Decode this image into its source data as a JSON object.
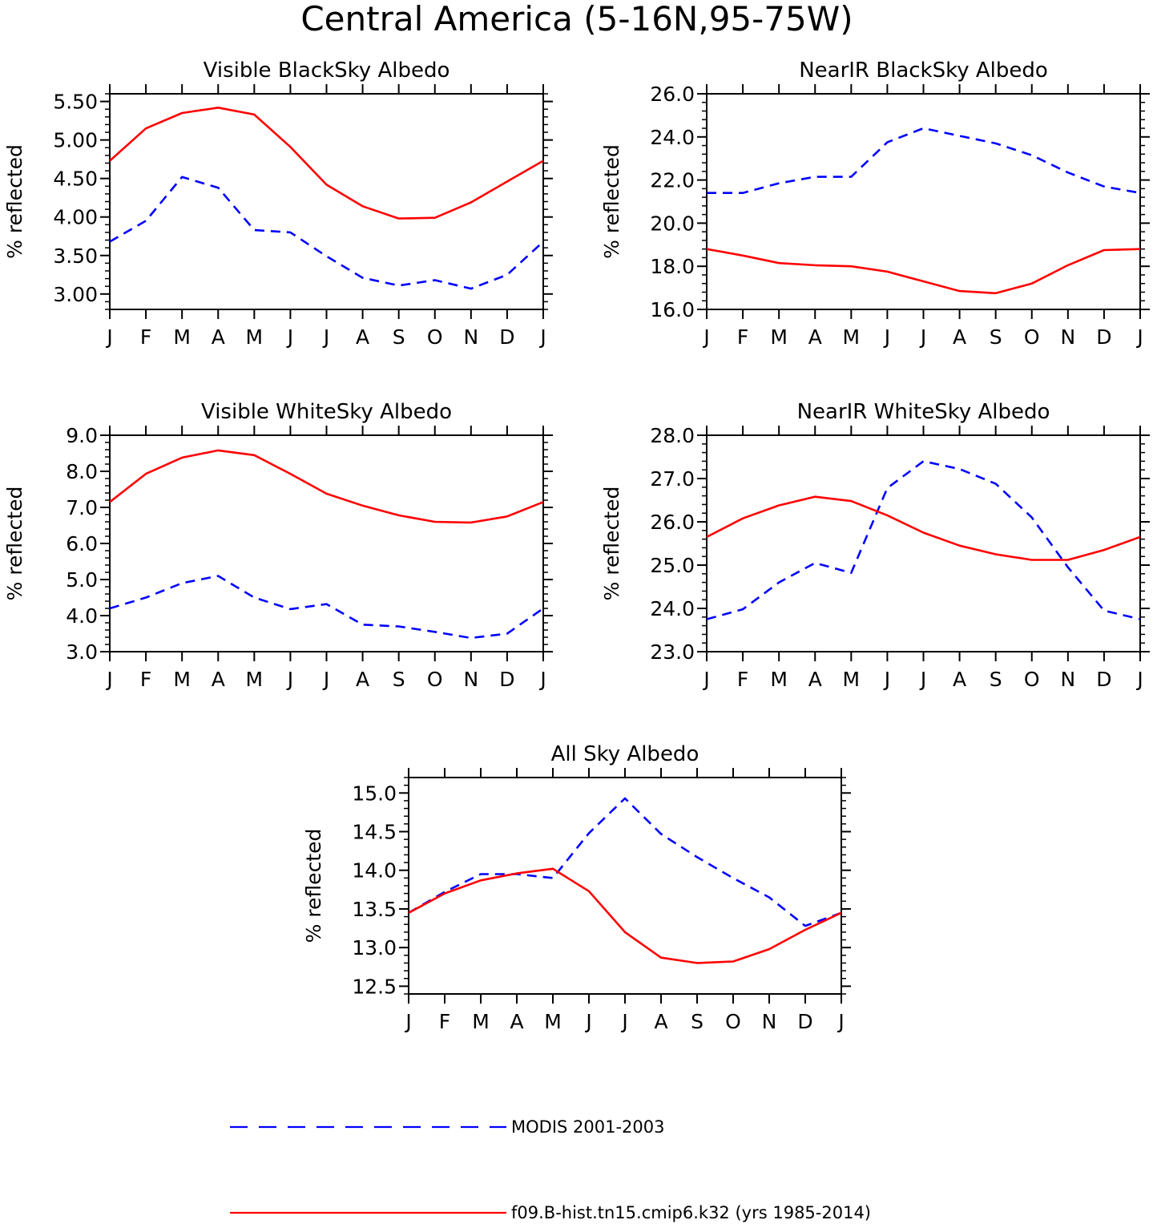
{
  "title": "Central America (5-16N,95-75W)",
  "month_labels": [
    "J",
    "F",
    "M",
    "A",
    "M",
    "J",
    "J",
    "A",
    "S",
    "O",
    "N",
    "D",
    "J"
  ],
  "ylabel": "% reflected",
  "colors": {
    "modis": "#0000ff",
    "model": "#ff0000"
  },
  "legend": {
    "modis_label": "MODIS 2001-2003",
    "model_label": "f09.B-hist.tn15.cmip6.k32 (yrs 1985-2014)"
  },
  "chart_data": [
    {
      "type": "line",
      "title": "Visible BlackSky Albedo",
      "ylabel": "% reflected",
      "x": [
        "J",
        "F",
        "M",
        "A",
        "M",
        "J",
        "J",
        "A",
        "S",
        "O",
        "N",
        "D",
        "J"
      ],
      "ylim": [
        2.8,
        5.6
      ],
      "yticks": [
        3.0,
        3.5,
        4.0,
        4.5,
        5.0,
        5.5
      ],
      "ytick_labels": [
        "3.00",
        "3.50",
        "4.00",
        "4.50",
        "5.00",
        "5.50"
      ],
      "series": [
        {
          "name": "MODIS 2001-2003",
          "style": "dashed",
          "values": [
            3.68,
            3.95,
            4.52,
            4.38,
            3.83,
            3.8,
            3.49,
            3.21,
            3.11,
            3.18,
            3.07,
            3.25,
            3.68
          ]
        },
        {
          "name": "f09.B-hist.tn15.cmip6.k32 (yrs 1985-2014)",
          "style": "solid",
          "values": [
            4.73,
            5.15,
            5.35,
            5.42,
            5.33,
            4.91,
            4.42,
            4.14,
            3.98,
            3.99,
            4.19,
            4.46,
            4.73
          ]
        }
      ]
    },
    {
      "type": "line",
      "title": "NearIR BlackSky Albedo",
      "ylabel": "% reflected",
      "x": [
        "J",
        "F",
        "M",
        "A",
        "M",
        "J",
        "J",
        "A",
        "S",
        "O",
        "N",
        "D",
        "J"
      ],
      "ylim": [
        16.0,
        26.0
      ],
      "yticks": [
        16,
        18,
        20,
        22,
        24,
        26
      ],
      "ytick_labels": [
        "16.0",
        "18.0",
        "20.0",
        "22.0",
        "24.0",
        "26.0"
      ],
      "series": [
        {
          "name": "MODIS 2001-2003",
          "style": "dashed",
          "values": [
            21.4,
            21.4,
            21.85,
            22.15,
            22.15,
            23.75,
            24.4,
            24.05,
            23.7,
            23.15,
            22.35,
            21.7,
            21.4
          ]
        },
        {
          "name": "f09.B-hist.tn15.cmip6.k32 (yrs 1985-2014)",
          "style": "solid",
          "values": [
            18.8,
            18.5,
            18.15,
            18.05,
            18.0,
            17.75,
            17.3,
            16.85,
            16.75,
            17.2,
            18.05,
            18.75,
            18.8
          ]
        }
      ]
    },
    {
      "type": "line",
      "title": "Visible WhiteSky Albedo",
      "ylabel": "% reflected",
      "x": [
        "J",
        "F",
        "M",
        "A",
        "M",
        "J",
        "J",
        "A",
        "S",
        "O",
        "N",
        "D",
        "J"
      ],
      "ylim": [
        3.0,
        9.0
      ],
      "yticks": [
        3,
        4,
        5,
        6,
        7,
        8,
        9
      ],
      "ytick_labels": [
        "3.0",
        "4.0",
        "5.0",
        "6.0",
        "7.0",
        "8.0",
        "9.0"
      ],
      "series": [
        {
          "name": "MODIS 2001-2003",
          "style": "dashed",
          "values": [
            4.2,
            4.5,
            4.9,
            5.1,
            4.5,
            4.18,
            4.32,
            3.75,
            3.7,
            3.55,
            3.38,
            3.5,
            4.2
          ]
        },
        {
          "name": "f09.B-hist.tn15.cmip6.k32 (yrs 1985-2014)",
          "style": "solid",
          "values": [
            7.15,
            7.93,
            8.38,
            8.58,
            8.45,
            7.93,
            7.38,
            7.05,
            6.78,
            6.6,
            6.58,
            6.75,
            7.15
          ]
        }
      ]
    },
    {
      "type": "line",
      "title": "NearIR WhiteSky Albedo",
      "ylabel": "% reflected",
      "x": [
        "J",
        "F",
        "M",
        "A",
        "M",
        "J",
        "J",
        "A",
        "S",
        "O",
        "N",
        "D",
        "J"
      ],
      "ylim": [
        23.0,
        28.0
      ],
      "yticks": [
        23,
        24,
        25,
        26,
        27,
        28
      ],
      "ytick_labels": [
        "23.0",
        "24.0",
        "25.0",
        "26.0",
        "27.0",
        "28.0"
      ],
      "series": [
        {
          "name": "MODIS 2001-2003",
          "style": "dashed",
          "values": [
            23.75,
            23.98,
            24.6,
            25.05,
            24.82,
            26.78,
            27.4,
            27.22,
            26.88,
            26.1,
            24.95,
            23.95,
            23.75
          ]
        },
        {
          "name": "f09.B-hist.tn15.cmip6.k32 (yrs 1985-2014)",
          "style": "solid",
          "values": [
            25.65,
            26.08,
            26.38,
            26.58,
            26.48,
            26.15,
            25.75,
            25.45,
            25.25,
            25.12,
            25.12,
            25.35,
            25.65
          ]
        }
      ]
    },
    {
      "type": "line",
      "title": "All Sky Albedo",
      "ylabel": "% reflected",
      "x": [
        "J",
        "F",
        "M",
        "A",
        "M",
        "J",
        "J",
        "A",
        "S",
        "O",
        "N",
        "D",
        "J"
      ],
      "ylim": [
        12.4,
        15.2
      ],
      "yticks": [
        12.5,
        13.0,
        13.5,
        14.0,
        14.5,
        15.0
      ],
      "ytick_labels": [
        "12.5",
        "13.0",
        "13.5",
        "14.0",
        "14.5",
        "15.0"
      ],
      "series": [
        {
          "name": "MODIS 2001-2003",
          "style": "dashed",
          "values": [
            13.45,
            13.72,
            13.95,
            13.95,
            13.9,
            14.48,
            14.93,
            14.47,
            14.17,
            13.9,
            13.65,
            13.28,
            13.45
          ]
        },
        {
          "name": "f09.B-hist.tn15.cmip6.k32 (yrs 1985-2014)",
          "style": "solid",
          "values": [
            13.45,
            13.7,
            13.87,
            13.96,
            14.02,
            13.73,
            13.2,
            12.87,
            12.8,
            12.82,
            12.98,
            13.23,
            13.45
          ]
        }
      ]
    }
  ]
}
